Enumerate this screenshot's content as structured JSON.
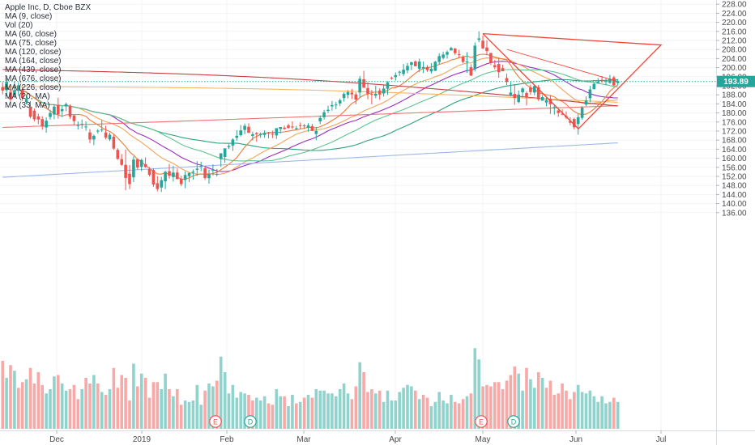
{
  "legend": {
    "title": "Apple Inc, D, Cboe BZX",
    "indicators": [
      "MA (9, close)",
      "Vol (20)",
      "MA (60, close)",
      "MA (75, close)",
      "MA (120, close)",
      "MA (164, close)",
      "MA (439, close)",
      "MA (676, close)",
      "MA (226, close)",
      "MA (20, MA)",
      "MA (33, MA)"
    ]
  },
  "colors": {
    "up": "#26a69a",
    "down": "#ef5350",
    "vol_up": "#8fd3cc",
    "vol_down": "#f7a9a7",
    "ma9": "#f07a3a",
    "ma20": "#f5a45a",
    "ma60": "#5fc48f",
    "ma75": "#9c2bbf",
    "ma120": "#2ea37d",
    "ma164": "#ee7474",
    "ma226": "#c93f3f",
    "ma439": "#f4b860",
    "ma676": "#9db8e8",
    "trend": "#f44336",
    "grid": "#f0f3f5",
    "price_line": "#26a69a"
  },
  "chart_data": {
    "type": "candlestick",
    "ylim": [
      134,
      230
    ],
    "y_ticks": [
      "228.00",
      "224.00",
      "220.00",
      "216.00",
      "212.00",
      "208.00",
      "204.00",
      "200.00",
      "196.00",
      "192.00",
      "188.00",
      "184.00",
      "180.00",
      "176.00",
      "172.00",
      "168.00",
      "164.00",
      "160.00",
      "156.00",
      "152.00",
      "148.00",
      "144.00",
      "140.00",
      "136.00"
    ],
    "x_ticks": [
      "Dec",
      "2019",
      "Feb",
      "Mar",
      "Apr",
      "May",
      "Jun",
      "Jul"
    ],
    "last_price": "193.89",
    "events": [
      {
        "label": "E",
        "month": "Feb"
      },
      {
        "label": "D",
        "month": "Feb"
      },
      {
        "label": "E",
        "month": "May"
      },
      {
        "label": "D",
        "month": "May"
      }
    ],
    "ohlc": [
      [
        191.4,
        193.6,
        188.2,
        189.9
      ],
      [
        190.0,
        195.4,
        187.4,
        193.8
      ],
      [
        189.3,
        190.7,
        184.5,
        185.9
      ],
      [
        187.7,
        194.1,
        186.7,
        190.0
      ],
      [
        189.8,
        193.5,
        187.5,
        192.2
      ],
      [
        190.4,
        191.5,
        185.3,
        186.6
      ],
      [
        184.8,
        187.8,
        183.8,
        186.2
      ],
      [
        182.4,
        185.2,
        177.6,
        178.3
      ],
      [
        181.0,
        182.0,
        176.3,
        177.2
      ],
      [
        178.5,
        179.7,
        175.0,
        177.1
      ],
      [
        177.3,
        178.6,
        172.6,
        174.0
      ],
      [
        173.6,
        178.1,
        171.3,
        176.6
      ],
      [
        178.2,
        181.4,
        177.0,
        180.0
      ],
      [
        179.3,
        183.9,
        177.2,
        182.8
      ],
      [
        183.6,
        186.7,
        177.5,
        179.4
      ],
      [
        180.8,
        182.9,
        178.2,
        181.7
      ],
      [
        182.9,
        184.6,
        180.8,
        183.9
      ],
      [
        183.1,
        183.8,
        177.3,
        178.4
      ],
      [
        178.9,
        179.0,
        174.5,
        176.4
      ],
      [
        174.4,
        176.2,
        172.7,
        174.6
      ],
      [
        175.1,
        177.1,
        173.0,
        175.2
      ],
      [
        173.8,
        176.2,
        172.2,
        174.0
      ],
      [
        171.4,
        172.9,
        166.7,
        168.3
      ],
      [
        168.3,
        170.5,
        165.8,
        169.9
      ],
      [
        171.8,
        172.9,
        170.9,
        172.2
      ],
      [
        172.6,
        176.8,
        171.6,
        172.7
      ],
      [
        171.4,
        174.4,
        168.3,
        169.1
      ],
      [
        168.3,
        171.3,
        167.6,
        170.4
      ],
      [
        169.5,
        170.4,
        163.7,
        164.3
      ],
      [
        163.7,
        164.4,
        159.3,
        159.7
      ],
      [
        159.6,
        161.9,
        156.6,
        157.1
      ],
      [
        157.1,
        163.8,
        145.9,
        151.3
      ],
      [
        153.2,
        157.0,
        146.4,
        148.6
      ],
      [
        151.6,
        160.8,
        149.5,
        159.4
      ],
      [
        159.5,
        159.9,
        155.1,
        155.9
      ],
      [
        156.2,
        159.7,
        154.3,
        159.3
      ],
      [
        157.4,
        160.4,
        155.8,
        156.1
      ],
      [
        155.3,
        156.1,
        152.0,
        152.7
      ],
      [
        154.8,
        155.6,
        147.4,
        148.4
      ],
      [
        149.0,
        152.1,
        145.4,
        146.4
      ],
      [
        147.1,
        151.8,
        145.1,
        150.3
      ],
      [
        149.8,
        154.6,
        146.4,
        154.0
      ],
      [
        154.3,
        157.5,
        151.0,
        152.3
      ],
      [
        151.7,
        156.7,
        149.7,
        153.7
      ],
      [
        153.7,
        155.5,
        150.7,
        150.8
      ],
      [
        150.8,
        152.3,
        147.7,
        148.6
      ],
      [
        150.4,
        154.2,
        146.8,
        152.6
      ],
      [
        152.1,
        153.7,
        149.5,
        153.5
      ],
      [
        153.6,
        155.0,
        150.5,
        154.1
      ],
      [
        154.9,
        158.7,
        152.3,
        155.4
      ],
      [
        156.2,
        158.5,
        154.3,
        156.5
      ],
      [
        155.6,
        156.6,
        150.4,
        151.3
      ],
      [
        151.2,
        155.1,
        148.8,
        153.0
      ],
      [
        154.8,
        157.3,
        152.4,
        154.9
      ],
      [
        153.1,
        155.3,
        152.0,
        153.1
      ],
      [
        159.6,
        161.7,
        156.2,
        162.2
      ],
      [
        160.6,
        164.0,
        158.0,
        164.4
      ],
      [
        164.9,
        166.2,
        164.1,
        165.4
      ],
      [
        165.6,
        168.8,
        163.2,
        168.3
      ],
      [
        169.0,
        172.4,
        167.7,
        169.9
      ],
      [
        170.2,
        174.7,
        169.6,
        172.3
      ],
      [
        172.5,
        175.3,
        170.6,
        174.3
      ],
      [
        173.9,
        175.5,
        171.2,
        171.2
      ],
      [
        169.9,
        171.7,
        167.9,
        170.6
      ],
      [
        171.1,
        171.6,
        167.3,
        170.6
      ],
      [
        170.3,
        171.4,
        169.0,
        170.8
      ],
      [
        170.3,
        172.3,
        169.0,
        171.2
      ],
      [
        171.3,
        171.7,
        168.8,
        171.1
      ],
      [
        170.8,
        172.2,
        168.9,
        170.5
      ],
      [
        170.1,
        173.2,
        168.5,
        173.3
      ],
      [
        172.9,
        173.5,
        170.9,
        173.8
      ],
      [
        173.5,
        174.4,
        172.6,
        172.9
      ],
      [
        174.5,
        175.3,
        173.0,
        173.4
      ],
      [
        174.0,
        176.3,
        172.9,
        173.6
      ],
      [
        173.3,
        174.3,
        172.3,
        173.3
      ],
      [
        174.6,
        175.8,
        173.1,
        174.4
      ],
      [
        174.5,
        175.1,
        172.9,
        174.1
      ],
      [
        173.4,
        175.5,
        171.7,
        174.5
      ],
      [
        174.2,
        175.2,
        172.0,
        172.1
      ],
      [
        170.7,
        173.9,
        168.0,
        172.1
      ],
      [
        176.3,
        178.9,
        175.1,
        177.8
      ],
      [
        178.1,
        181.4,
        177.1,
        180.3
      ],
      [
        180.9,
        183.2,
        180.0,
        181.4
      ],
      [
        182.9,
        185.3,
        181.0,
        183.5
      ],
      [
        183.5,
        184.9,
        181.7,
        183.7
      ],
      [
        184.2,
        186.4,
        183.0,
        185.6
      ],
      [
        186.6,
        189.1,
        185.0,
        188.4
      ],
      [
        188.0,
        190.1,
        186.4,
        189.2
      ],
      [
        189.0,
        190.6,
        186.2,
        188.2
      ],
      [
        188.2,
        189.1,
        183.8,
        185.9
      ],
      [
        189.0,
        196.3,
        186.9,
        195.1
      ],
      [
        194.9,
        198.6,
        191.1,
        191.1
      ],
      [
        191.0,
        193.6,
        186.0,
        188.4
      ],
      [
        188.4,
        190.2,
        183.8,
        188.3
      ],
      [
        187.6,
        192.0,
        186.5,
        188.5
      ],
      [
        189.9,
        190.9,
        185.8,
        188.1
      ],
      [
        188.6,
        192.3,
        187.2,
        190.8
      ],
      [
        190.7,
        194.0,
        188.0,
        193.5
      ],
      [
        195.5,
        196.1,
        194.6,
        195.3
      ],
      [
        195.8,
        197.9,
        194.3,
        196.7
      ],
      [
        197.8,
        198.7,
        196.3,
        198.2
      ],
      [
        197.2,
        201.6,
        196.3,
        199.1
      ],
      [
        198.8,
        202.1,
        197.5,
        200.8
      ],
      [
        201.2,
        202.6,
        198.9,
        202.4
      ],
      [
        202.7,
        203.2,
        200.8,
        200.6
      ],
      [
        199.5,
        203.9,
        198.0,
        202.7
      ],
      [
        199.7,
        202.7,
        197.6,
        200.3
      ],
      [
        200.3,
        201.1,
        198.1,
        198.9
      ],
      [
        198.3,
        202.0,
        197.4,
        199.5
      ],
      [
        198.6,
        203.0,
        198.5,
        202.6
      ],
      [
        202.5,
        206.3,
        201.5,
        205.1
      ],
      [
        204.3,
        207.1,
        203.6,
        205.8
      ],
      [
        205.7,
        207.6,
        204.0,
        206.9
      ],
      [
        207.6,
        209.2,
        207.6,
        208.7
      ],
      [
        208.4,
        208.8,
        205.5,
        206.4
      ],
      [
        205.9,
        207.9,
        204.1,
        205.6
      ],
      [
        204.7,
        205.4,
        201.9,
        202.5
      ],
      [
        202.5,
        206.8,
        197.7,
        202.7
      ],
      [
        200.2,
        201.5,
        196.3,
        196.5
      ],
      [
        199.3,
        211.1,
        198.3,
        209.7
      ],
      [
        212.3,
        216.0,
        211.2,
        212.9
      ],
      [
        211.9,
        214.2,
        208.2,
        208.5
      ],
      [
        208.9,
        212.1,
        205.5,
        207.3
      ],
      [
        206.5,
        206.4,
        201.1,
        202.1
      ],
      [
        201.1,
        203.4,
        199.3,
        200.2
      ],
      [
        201.6,
        204.2,
        195.5,
        198.0
      ],
      [
        199.8,
        201.3,
        198.4,
        198.4
      ],
      [
        195.4,
        197.3,
        192.3,
        193.7
      ],
      [
        188.0,
        193.6,
        187.3,
        189.0
      ],
      [
        188.4,
        192.7,
        183.6,
        186.6
      ],
      [
        184.8,
        189.9,
        184.3,
        188.1
      ],
      [
        189.1,
        191.4,
        186.8,
        190.8
      ],
      [
        188.8,
        189.6,
        183.3,
        186.8
      ],
      [
        191.2,
        192.5,
        188.0,
        189.2
      ],
      [
        189.0,
        192.4,
        187.8,
        191.9
      ],
      [
        191.4,
        192.4,
        185.3,
        186.0
      ],
      [
        185.4,
        187.9,
        185.4,
        187.0
      ],
      [
        184.6,
        187.0,
        183.0,
        185.7
      ],
      [
        186.3,
        187.8,
        179.6,
        183.9
      ],
      [
        182.6,
        183.5,
        179.3,
        182.6
      ],
      [
        181.1,
        181.5,
        178.2,
        180.0
      ],
      [
        179.6,
        181.6,
        179.0,
        179.3
      ],
      [
        178.6,
        180.7,
        177.3,
        178.0
      ],
      [
        176.4,
        178.1,
        174.6,
        175.7
      ],
      [
        177.3,
        177.9,
        172.7,
        173.7
      ],
      [
        175.1,
        179.7,
        170.4,
        178.1
      ],
      [
        177.8,
        182.9,
        177.0,
        182.4
      ],
      [
        183.7,
        187.3,
        183.0,
        185.5
      ],
      [
        186.5,
        192.0,
        184.7,
        190.4
      ],
      [
        190.5,
        193.5,
        190.4,
        192.8
      ],
      [
        193.1,
        195.4,
        193.1,
        193.7
      ],
      [
        194.6,
        196.3,
        193.4,
        194.0
      ],
      [
        193.9,
        195.2,
        192.3,
        194.1
      ],
      [
        193.3,
        196.8,
        192.9,
        195.1
      ],
      [
        195.7,
        196.4,
        191.8,
        192.2
      ],
      [
        193.2,
        195.0,
        192.3,
        193.9
      ]
    ],
    "volumes": [
      [
        48,
        0
      ],
      [
        36,
        1
      ],
      [
        45,
        0
      ],
      [
        41,
        1
      ],
      [
        29,
        0
      ],
      [
        33,
        0
      ],
      [
        35,
        1
      ],
      [
        43,
        0
      ],
      [
        32,
        0
      ],
      [
        40,
        0
      ],
      [
        31,
        0
      ],
      [
        25,
        1
      ],
      [
        28,
        1
      ],
      [
        37,
        1
      ],
      [
        38,
        0
      ],
      [
        32,
        1
      ],
      [
        27,
        1
      ],
      [
        28,
        0
      ],
      [
        31,
        0
      ],
      [
        21,
        0
      ],
      [
        28,
        1
      ],
      [
        36,
        0
      ],
      [
        32,
        0
      ],
      [
        38,
        1
      ],
      [
        32,
        0
      ],
      [
        26,
        1
      ],
      [
        24,
        0
      ],
      [
        28,
        1
      ],
      [
        43,
        0
      ],
      [
        29,
        0
      ],
      [
        38,
        0
      ],
      [
        36,
        0
      ],
      [
        20,
        0
      ],
      [
        46,
        1
      ],
      [
        30,
        0
      ],
      [
        39,
        1
      ],
      [
        36,
        0
      ],
      [
        22,
        0
      ],
      [
        33,
        0
      ],
      [
        33,
        0
      ],
      [
        28,
        1
      ],
      [
        39,
        1
      ],
      [
        28,
        0
      ],
      [
        23,
        1
      ],
      [
        28,
        0
      ],
      [
        17,
        0
      ],
      [
        20,
        1
      ],
      [
        19,
        1
      ],
      [
        20,
        1
      ],
      [
        31,
        1
      ],
      [
        17,
        1
      ],
      [
        27,
        0
      ],
      [
        32,
        1
      ],
      [
        30,
        1
      ],
      [
        34,
        0
      ],
      [
        51,
        1
      ],
      [
        40,
        1
      ],
      [
        25,
        1
      ],
      [
        31,
        1
      ],
      [
        22,
        1
      ],
      [
        26,
        1
      ],
      [
        25,
        1
      ],
      [
        24,
        0
      ],
      [
        20,
        0
      ],
      [
        22,
        1
      ],
      [
        20,
        1
      ],
      [
        23,
        1
      ],
      [
        18,
        0
      ],
      [
        17,
        0
      ],
      [
        28,
        1
      ],
      [
        23,
        1
      ],
      [
        23,
        0
      ],
      [
        16,
        1
      ],
      [
        24,
        1
      ],
      [
        18,
        0
      ],
      [
        19,
        1
      ],
      [
        22,
        0
      ],
      [
        24,
        1
      ],
      [
        22,
        0
      ],
      [
        28,
        1
      ],
      [
        27,
        1
      ],
      [
        27,
        1
      ],
      [
        25,
        1
      ],
      [
        25,
        1
      ],
      [
        23,
        1
      ],
      [
        28,
        1
      ],
      [
        32,
        1
      ],
      [
        25,
        1
      ],
      [
        21,
        0
      ],
      [
        30,
        0
      ],
      [
        47,
        1
      ],
      [
        40,
        0
      ],
      [
        26,
        0
      ],
      [
        28,
        0
      ],
      [
        25,
        1
      ],
      [
        27,
        0
      ],
      [
        19,
        1
      ],
      [
        27,
        1
      ],
      [
        20,
        1
      ],
      [
        20,
        1
      ],
      [
        26,
        1
      ],
      [
        29,
        1
      ],
      [
        31,
        1
      ],
      [
        30,
        1
      ],
      [
        27,
        0
      ],
      [
        21,
        1
      ],
      [
        24,
        0
      ],
      [
        22,
        0
      ],
      [
        16,
        1
      ],
      [
        19,
        1
      ],
      [
        26,
        1
      ],
      [
        20,
        1
      ],
      [
        18,
        1
      ],
      [
        24,
        1
      ],
      [
        19,
        0
      ],
      [
        18,
        0
      ],
      [
        21,
        0
      ],
      [
        23,
        1
      ],
      [
        25,
        0
      ],
      [
        57,
        1
      ],
      [
        49,
        1
      ],
      [
        30,
        0
      ],
      [
        31,
        0
      ],
      [
        30,
        0
      ],
      [
        33,
        0
      ],
      [
        33,
        0
      ],
      [
        28,
        0
      ],
      [
        34,
        0
      ],
      [
        38,
        0
      ],
      [
        44,
        0
      ],
      [
        39,
        1
      ],
      [
        27,
        1
      ],
      [
        43,
        0
      ],
      [
        35,
        1
      ],
      [
        29,
        1
      ],
      [
        40,
        0
      ],
      [
        36,
        1
      ],
      [
        29,
        0
      ],
      [
        34,
        0
      ],
      [
        24,
        0
      ],
      [
        25,
        0
      ],
      [
        32,
        0
      ],
      [
        27,
        0
      ],
      [
        21,
        0
      ],
      [
        26,
        0
      ],
      [
        31,
        1
      ],
      [
        26,
        1
      ],
      [
        25,
        1
      ],
      [
        27,
        1
      ],
      [
        23,
        1
      ],
      [
        19,
        1
      ],
      [
        23,
        1
      ],
      [
        18,
        1
      ],
      [
        19,
        1
      ],
      [
        22,
        0
      ],
      [
        19,
        1
      ]
    ]
  }
}
